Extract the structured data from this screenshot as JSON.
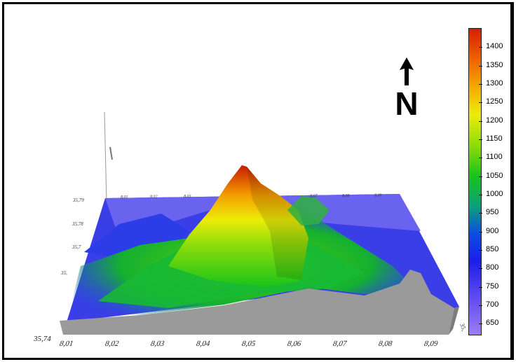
{
  "chart_data": {
    "type": "surface-3d",
    "colorbar": {
      "ticks": [
        650,
        700,
        750,
        800,
        850,
        900,
        950,
        1000,
        1050,
        1100,
        1150,
        1200,
        1250,
        1300,
        1350,
        1400
      ],
      "range": [
        620,
        1450
      ],
      "colors": [
        "#9d7cf5",
        "#1d1dea",
        "#0aa07a",
        "#19c419",
        "#ecec08",
        "#ef6a00",
        "#d71e00"
      ]
    },
    "x_ticks": [
      "8,01",
      "8,02",
      "8,03",
      "8,04",
      "8,05",
      "8,06",
      "8,07",
      "8,08",
      "8,09"
    ],
    "y_ticks": [
      "35,74",
      "35,"
    ],
    "back_x_ticks": [
      "8,01",
      "8,02",
      "8,03",
      "8,07",
      "8,08",
      "8,09"
    ],
    "back_y_ticks": [
      "35,79",
      "35,78",
      "35,7",
      "35,"
    ],
    "north_label": "N",
    "peak_elevation": 1420,
    "base_elevation": 640
  }
}
